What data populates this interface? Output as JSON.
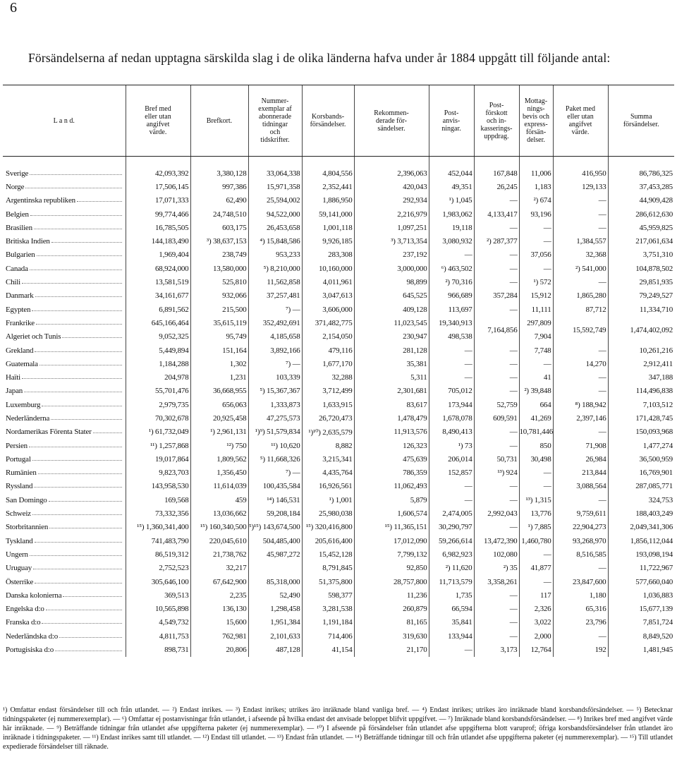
{
  "header": {
    "page_number": "6",
    "title": "Försändelserna af nedan upptagna särskilda slag i de olika länderna hafva under år 1884 uppgått till följande antal:"
  },
  "table": {
    "columns": [
      "L a n d.",
      "Bref med\neller utan\nangifvet\nvärde.",
      "Brefkort.",
      "Nummer-\nexemplar af\nabonnerade\ntidningar\noch\ntidskrifter.",
      "Korsbands-\nförsändelser.",
      "Rekommen-\nderade för-\nsändelser.",
      "Post-\nanvis-\nningar.",
      "Post-\nförskott\noch in-\nkasserings-\nuppdrag.",
      "Mottag-\nnings-\nbevis och\nexpress-\nförsän-\ndelser.",
      "Paket med\neller utan\nangifvet\nvärde.",
      "Summa\nförsändelser."
    ],
    "rows": [
      [
        "Sverige",
        "42,093,392",
        "3,380,128",
        "33,064,338",
        "4,804,556",
        "2,396,063",
        "452,044",
        "167,848",
        "11,006",
        "416,950",
        "86,786,325"
      ],
      [
        "Norge",
        "17,506,145",
        "997,386",
        "15,971,358",
        "2,352,441",
        "420,043",
        "49,351",
        "26,245",
        "1,183",
        "129,133",
        "37,453,285"
      ],
      [
        "Argentinska republiken",
        "17,071,333",
        "62,490",
        "25,594,002",
        "1,886,950",
        "292,934",
        "¹) 1,045",
        "—",
        "²) 674",
        "—",
        "44,909,428"
      ],
      [
        "Belgien",
        "99,774,466",
        "24,748,510",
        "94,522,000",
        "59,141,000",
        "2,216,979",
        "1,983,062",
        "4,133,417",
        "93,196",
        "—",
        "286,612,630"
      ],
      [
        "Brasilien",
        "16,785,505",
        "603,175",
        "26,453,658",
        "1,001,118",
        "1,097,251",
        "19,118",
        "—",
        "—",
        "—",
        "45,959,825"
      ],
      [
        "Britiska Indien",
        "144,183,490",
        "³) 38,637,153",
        "⁴) 15,848,586",
        "9,926,185",
        "³) 3,713,354",
        "3,080,932",
        "²) 287,377",
        "—",
        "1,384,557",
        "217,061,634"
      ],
      [
        "Bulgarien",
        "1,969,404",
        "238,749",
        "953,233",
        "283,308",
        "237,192",
        "—",
        "—",
        "37,056",
        "32,368",
        "3,751,310"
      ],
      [
        "Canada",
        "68,924,000",
        "13,580,000",
        "⁵) 8,210,000",
        "10,160,000",
        "3,000,000",
        "⁶) 463,502",
        "—",
        "—",
        "²) 541,000",
        "104,878,502"
      ],
      [
        "Chili",
        "13,581,519",
        "525,810",
        "11,562,858",
        "4,011,961",
        "98,899",
        "²) 70,316",
        "—",
        "¹) 572",
        "—",
        "29,851,935"
      ],
      [
        "Danmark",
        "34,161,677",
        "932,066",
        "37,257,481",
        "3,047,613",
        "645,525",
        "966,689",
        "357,284",
        "15,912",
        "1,865,280",
        "79,249,527"
      ],
      [
        "Egypten",
        "6,891,562",
        "215,500",
        "⁷) —",
        "3,606,000",
        "409,128",
        "113,697",
        "—",
        "11,111",
        "87,712",
        "11,334,710"
      ],
      [
        "Frankrike",
        "645,166,464",
        "35,615,119",
        "352,492,691",
        "371,482,775",
        "11,023,545",
        "19,340,913",
        "7,164,856",
        "297,809",
        "15,592,749",
        "1,474,402,092"
      ],
      [
        "Algeriet och Tunis",
        "9,052,325",
        "95,749",
        "4,185,658",
        "2,154,050",
        "230,947",
        "498,538",
        null,
        "7,904",
        null,
        null
      ],
      [
        "Grekland",
        "5,449,894",
        "151,164",
        "3,892,166",
        "479,116",
        "281,128",
        "—",
        "—",
        "7,748",
        "—",
        "10,261,216"
      ],
      [
        "Guatemala",
        "1,184,288",
        "1,302",
        "⁷) —",
        "1,677,170",
        "35,381",
        "—",
        "—",
        "—",
        "14,270",
        "2,912,411"
      ],
      [
        "Haïti",
        "204,978",
        "1,231",
        "103,339",
        "32,288",
        "5,311",
        "—",
        "—",
        "41",
        "—",
        "347,188"
      ],
      [
        "Japan",
        "55,701,476",
        "36,668,955",
        "⁵) 15,367,367",
        "3,712,499",
        "2,301,681",
        "705,012",
        "—",
        "²) 39,848",
        "—",
        "114,496,838"
      ],
      [
        "Luxemburg",
        "2,979,735",
        "656,063",
        "1,333,873",
        "1,633,915",
        "83,617",
        "173,944",
        "52,759",
        "664",
        "⁸) 188,942",
        "7,103,512"
      ],
      [
        "Nederländerna",
        "70,302,678",
        "20,925,458",
        "47,275,573",
        "26,720,473",
        "1,478,479",
        "1,678,078",
        "609,591",
        "41,269",
        "2,397,146",
        "171,428,745"
      ],
      [
        "Nordamerikas Förenta Stater",
        "¹) 61,732,049",
        "¹) 2,961,131",
        "¹)⁹) 51,579,834",
        "¹)¹⁰) 2,635,579",
        "11,913,576",
        "8,490,413",
        "—",
        "10,781,446",
        "—",
        "150,093,968"
      ],
      [
        "Persien",
        "¹¹) 1,257,868",
        "¹²) 750",
        "¹¹) 10,620",
        "8,882",
        "126,323",
        "¹) 73",
        "—",
        "850",
        "71,908",
        "1,477,274"
      ],
      [
        "Portugal",
        "19,017,864",
        "1,809,562",
        "⁵) 11,668,326",
        "3,215,341",
        "475,639",
        "206,014",
        "50,731",
        "30,498",
        "26,984",
        "36,500,959"
      ],
      [
        "Rumänien",
        "9,823,703",
        "1,356,450",
        "⁷) —",
        "4,435,764",
        "786,359",
        "152,857",
        "¹³) 924",
        "—",
        "213,844",
        "16,769,901"
      ],
      [
        "Ryssland",
        "143,958,530",
        "11,614,039",
        "100,435,584",
        "16,926,561",
        "11,062,493",
        "—",
        "—",
        "—",
        "3,088,564",
        "287,085,771"
      ],
      [
        "San Domingo",
        "169,568",
        "459",
        "¹⁴) 146,531",
        "¹) 1,001",
        "5,879",
        "—",
        "—",
        "¹³) 1,315",
        "—",
        "324,753"
      ],
      [
        "Schweiz",
        "73,332,356",
        "13,036,662",
        "59,208,184",
        "25,980,038",
        "1,606,574",
        "2,474,005",
        "2,992,043",
        "13,776",
        "9,759,611",
        "188,403,249"
      ],
      [
        "Storbritannien",
        "¹⁵) 1,360,341,400",
        "¹⁵) 160,340,500",
        "⁵)¹⁵) 143,674,500",
        "¹⁵) 320,416,800",
        "¹⁵) 11,365,151",
        "30,290,797",
        "—",
        "¹) 7,885",
        "22,904,273",
        "2,049,341,306"
      ],
      [
        "Tyskland",
        "741,483,790",
        "220,045,610",
        "504,485,400",
        "205,616,400",
        "17,012,090",
        "59,266,614",
        "13,472,390",
        "1,460,780",
        "93,268,970",
        "1,856,112,044"
      ],
      [
        "Ungern",
        "86,519,312",
        "21,738,762",
        "45,987,272",
        "15,452,128",
        "7,799,132",
        "6,982,923",
        "102,080",
        "—",
        "8,516,585",
        "193,098,194"
      ],
      [
        "Uruguay",
        "2,752,523",
        "32,217",
        null,
        "8,791,845",
        "92,850",
        "²) 11,620",
        "²) 35",
        "41,877",
        "—",
        "11,722,967"
      ],
      [
        "Österrike",
        "305,646,100",
        "67,642,900",
        "85,318,000",
        "51,375,800",
        "28,757,800",
        "11,713,579",
        "3,358,261",
        "—",
        "23,847,600",
        "577,660,040"
      ],
      [
        "Danska kolonierna",
        "369,513",
        "2,235",
        "52,490",
        "598,377",
        "11,236",
        "1,735",
        "—",
        "117",
        "1,180",
        "1,036,883"
      ],
      [
        "Engelska d:o",
        "10,565,898",
        "136,130",
        "1,298,458",
        "3,281,538",
        "260,879",
        "66,594",
        "—",
        "2,326",
        "65,316",
        "15,677,139"
      ],
      [
        "Franska d:o",
        "4,549,732",
        "15,600",
        "1,951,384",
        "1,191,184",
        "81,165",
        "35,841",
        "—",
        "3,022",
        "23,796",
        "7,851,724"
      ],
      [
        "Nederländska d:o",
        "4,811,753",
        "762,981",
        "2,101,633",
        "714,406",
        "319,630",
        "133,944",
        "—",
        "2,000",
        "—",
        "8,849,520"
      ],
      [
        "Portugisiska d:o",
        "898,731",
        "20,806",
        "487,128",
        "41,154",
        "21,170",
        "—",
        "3,173",
        "12,764",
        "192",
        "1,481,945"
      ]
    ]
  },
  "footnotes": "¹) Omfattar endast försändelser till och från utlandet. — ²) Endast inrikes. — ³) Endast inrikes; utrikes äro inräknade bland vanliga bref. — ⁴) Endast inrikes; utrikes äro inräknade bland korsbandsförsändelser. — ⁵) Betecknar tidningspaketer (ej nummerexemplar). — ⁶) Omfattar ej postanvisningar från utlandet, i afseende på hvilka endast det anvisade beloppet blifvit uppgifvet. — ⁷) Inräknade bland korsbandsförsändelser. — ⁸) Inrikes bref med angifvet värde här inräknade. — ⁹) Beträffande tidningar från utlandet afse uppgifterna paketer (ej nummerexemplar). — ¹⁰) I afseende på försändelser från utlandet afse uppgifterna blott varuprof; öfriga korsbandsförsändelser från utlandet äro inräknade i tidningspaketer. — ¹¹) Endast inrikes samt till utlandet. — ¹²) Endast till utlandet. — ¹³) Endast från utlandet. — ¹⁴) Beträffande tidningar till och från utlandet afse uppgifterna paketer (ej nummerexemplar). — ¹⁵) Till utlandet expedierade försändelser till räknade."
}
